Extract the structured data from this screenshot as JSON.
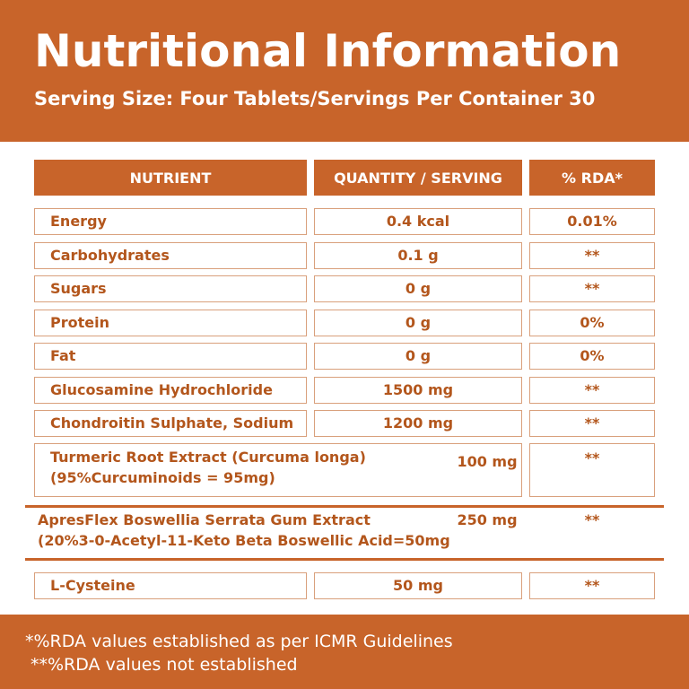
{
  "header": {
    "title": "Nutritional Information",
    "subtitle": "Serving Size: Four Tablets/Servings Per Container 30"
  },
  "table": {
    "columns": [
      "NUTRIENT",
      "QUANTITY / SERVING",
      "% RDA*"
    ],
    "rows": [
      [
        "Energy",
        "0.4 kcal",
        "0.01%"
      ],
      [
        "Carbohydrates",
        "0.1 g",
        "**"
      ],
      [
        "Sugars",
        "0 g",
        "**"
      ],
      [
        "Protein",
        "0 g",
        "0%"
      ],
      [
        "Fat",
        "0 g",
        "0%"
      ],
      [
        "Glucosamine Hydrochloride",
        "1500 mg",
        "**"
      ],
      [
        "Chondroitin Sulphate, Sodium",
        "1200 mg",
        "**"
      ],
      [
        "Turmeric Root Extract (Curcuma  longa)\n(95%Curcuminoids = 95mg)",
        "100 mg",
        "**"
      ],
      [
        "ApresFlex Boswellia Serrata Gum Extract\n(20%3-0-Acetyl-11-Keto Beta Boswellic Acid=50mg",
        "250 mg",
        "**"
      ],
      [
        "L-Cysteine",
        "50 mg",
        "**"
      ]
    ]
  },
  "footer": {
    "notes": [
      "*%RDA values established as per ICMR Guidelines",
      "**%RDA values not established"
    ]
  }
}
